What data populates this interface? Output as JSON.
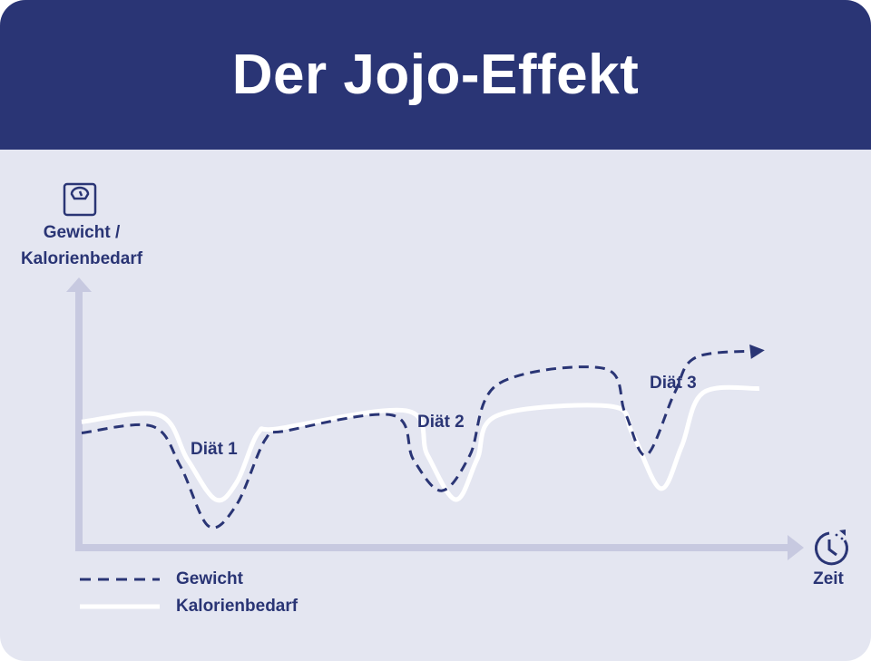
{
  "header": {
    "title": "Der Jojo-Effekt"
  },
  "chart_data": {
    "type": "line",
    "title": "Der Jojo-Effekt",
    "ylabel_line1": "Gewicht /",
    "ylabel_line2": "Kalorienbedarf",
    "xlabel": "Zeit",
    "xlim": [
      0,
      100
    ],
    "ylim": [
      0,
      100
    ],
    "grid": false,
    "legend_placement": "bottom-left",
    "annotations": [
      {
        "text": "Diät 1",
        "x": 18,
        "y": 45
      },
      {
        "text": "Diät 2",
        "x": 48,
        "y": 58
      },
      {
        "text": "Diät 3",
        "x": 80,
        "y": 76
      }
    ],
    "series": [
      {
        "name": "Gewicht",
        "style": "dashed",
        "color": "#2a3575",
        "x": [
          0,
          10,
          14,
          18,
          22,
          26,
          29,
          44,
          47,
          51,
          55,
          59,
          74,
          77,
          80,
          84,
          87,
          96
        ],
        "y": [
          50,
          53,
          35,
          8,
          18,
          47,
          51,
          58,
          38,
          24,
          40,
          72,
          79,
          59,
          40,
          68,
          84,
          87
        ]
      },
      {
        "name": "Kalorienbedarf",
        "style": "solid",
        "color": "#ffffff",
        "x": [
          0,
          11,
          15,
          19,
          22,
          25,
          28,
          46,
          49,
          53,
          56,
          59,
          75,
          78,
          82,
          85,
          88,
          96
        ],
        "y": [
          55,
          58,
          38,
          20,
          28,
          50,
          52,
          60,
          40,
          20,
          38,
          58,
          62,
          50,
          25,
          44,
          68,
          70
        ]
      }
    ],
    "axis_color": "#c7c9e0"
  },
  "colors": {
    "accent": "#2a3575",
    "background": "#e4e6f1",
    "axis": "#c7c9e0"
  },
  "icons": {
    "y_axis": "scale-icon",
    "x_axis": "clock-icon"
  }
}
